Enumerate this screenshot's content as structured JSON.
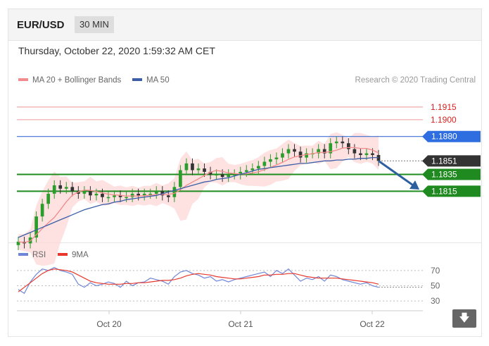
{
  "header": {
    "symbol": "EUR/USD",
    "timeframe": "30 MIN"
  },
  "datetime": "Thursday, October 22, 2020 1:59:32 AM CET",
  "legend": {
    "ma20": "MA 20 + Bollinger Bands",
    "ma50": "MA 50",
    "copyright": "Research © 2020 Trading Central"
  },
  "rsi_legend": {
    "rsi": "RSI",
    "ma9": "9MA"
  },
  "colors": {
    "up": "#2a9d2a",
    "down": "#333333",
    "ma20": "#f28b8b",
    "ma50": "#3b5ea6",
    "band": "#fdd6d6",
    "resistance": "#f2a8a8",
    "current": "#3b6fd4",
    "support": "#1e8c1e",
    "projection": "#2b5f9e",
    "rsi": "#6f86d6",
    "ma9": "#e8382d"
  },
  "chart_data": [
    {
      "type": "candlestick",
      "x_ticks": [
        "Oct 20",
        "Oct 21",
        "Oct 22"
      ],
      "y_range": [
        1.1755,
        1.1935
      ],
      "levels": [
        {
          "label": "1.1915",
          "value": 1.1915,
          "kind": "resistance"
        },
        {
          "label": "1.1900",
          "value": 1.19,
          "kind": "resistance"
        },
        {
          "label": "1.1880",
          "value": 1.188,
          "kind": "pivot"
        },
        {
          "label": "1.1851",
          "value": 1.1851,
          "kind": "last"
        },
        {
          "label": "1.1835",
          "value": 1.1835,
          "kind": "support"
        },
        {
          "label": "1.1815",
          "value": 1.1815,
          "kind": "support"
        }
      ],
      "price": [
        1.1755,
        1.1753,
        1.176,
        1.1785,
        1.18,
        1.1812,
        1.1822,
        1.1818,
        1.182,
        1.1815,
        1.1812,
        1.1815,
        1.181,
        1.1812,
        1.1808,
        1.1808,
        1.181,
        1.1808,
        1.1808,
        1.1812,
        1.181,
        1.1812,
        1.1812,
        1.1815,
        1.181,
        1.1808,
        1.182,
        1.184,
        1.1848,
        1.184,
        1.1842,
        1.1838,
        1.1835,
        1.1835,
        1.1832,
        1.1835,
        1.1835,
        1.1838,
        1.184,
        1.1842,
        1.1845,
        1.185,
        1.1853,
        1.1855,
        1.186,
        1.1865,
        1.1862,
        1.1855,
        1.186,
        1.186,
        1.1865,
        1.186,
        1.1872,
        1.1874,
        1.1872,
        1.1865,
        1.186,
        1.1858,
        1.186,
        1.1858,
        1.1851
      ],
      "ma50": [
        1.176,
        1.1763,
        1.1766,
        1.1769,
        1.1772,
        1.1775,
        1.1778,
        1.1781,
        1.1784,
        1.1787,
        1.179,
        1.1793,
        1.1795,
        1.1797,
        1.1799,
        1.18,
        1.1802,
        1.1803,
        1.1805,
        1.1806,
        1.1807,
        1.1808,
        1.1809,
        1.181,
        1.1812,
        1.1814,
        1.1816,
        1.1818,
        1.182,
        1.1822,
        1.1824,
        1.1826,
        1.1827,
        1.1829,
        1.183,
        1.1831,
        1.1833,
        1.1835,
        1.1837,
        1.1839,
        1.1841,
        1.1842,
        1.1843,
        1.1844,
        1.1845,
        1.1846,
        1.1847,
        1.1848,
        1.1848,
        1.1849,
        1.185,
        1.1851,
        1.1851,
        1.1852,
        1.1852,
        1.1853,
        1.1853,
        1.1854,
        1.1854,
        1.1855,
        1.1855
      ]
    },
    {
      "type": "line",
      "title": "RSI",
      "y_ticks": [
        70,
        50,
        30
      ],
      "y_range": [
        20,
        80
      ],
      "series": [
        {
          "name": "RSI",
          "values": [
            45,
            40,
            55,
            65,
            72,
            70,
            74,
            70,
            68,
            65,
            52,
            48,
            54,
            50,
            52,
            55,
            53,
            48,
            56,
            50,
            54,
            55,
            60,
            58,
            56,
            52,
            62,
            68,
            70,
            66,
            64,
            60,
            62,
            56,
            58,
            55,
            58,
            60,
            62,
            64,
            66,
            68,
            62,
            70,
            66,
            72,
            64,
            56,
            60,
            58,
            62,
            56,
            64,
            62,
            58,
            56,
            54,
            52,
            54,
            50,
            48
          ]
        },
        {
          "name": "9MA",
          "values": [
            42,
            48,
            54,
            60,
            66,
            70,
            72,
            71,
            70,
            68,
            64,
            60,
            56,
            54,
            53,
            52,
            52,
            52,
            53,
            53,
            54,
            54,
            55,
            56,
            57,
            57,
            58,
            60,
            63,
            65,
            66,
            65,
            64,
            62,
            61,
            60,
            59,
            59,
            60,
            61,
            62,
            64,
            64,
            65,
            65,
            66,
            66,
            64,
            62,
            61,
            60,
            60,
            60,
            60,
            59,
            58,
            57,
            56,
            55,
            54,
            52
          ]
        }
      ]
    }
  ]
}
